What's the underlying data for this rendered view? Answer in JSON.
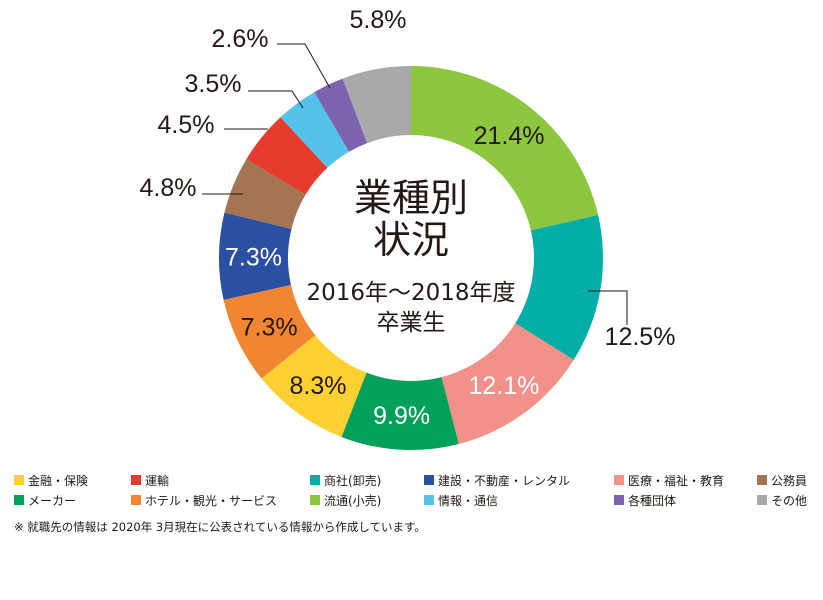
{
  "chart_data": {
    "type": "pie",
    "title": "業種別\n状況",
    "subtitle": "2016年〜2018年度\n卒業生",
    "categories": [
      "流通(小売)",
      "商社(卸売)",
      "医療・福祉・教育",
      "メーカー",
      "金融・保険",
      "ホテル・観光・サービス",
      "建設・不動産・レンタル",
      "公務員",
      "運輸",
      "情報・通信",
      "各種団体",
      "その他"
    ],
    "values": [
      21.4,
      12.5,
      12.1,
      9.9,
      8.3,
      7.3,
      7.3,
      4.8,
      4.5,
      3.5,
      2.6,
      5.8
    ],
    "labels": [
      "21.4%",
      "12.5%",
      "12.1%",
      "9.9%",
      "8.3%",
      "7.3%",
      "7.3%",
      "4.8%",
      "4.5%",
      "3.5%",
      "2.6%",
      "5.8%"
    ],
    "colors": [
      "#8dc63f",
      "#00aea5",
      "#f2918a",
      "#00a05a",
      "#fed032",
      "#f08532",
      "#2b4fa2",
      "#a47553",
      "#e63c2e",
      "#55c2ec",
      "#7b64ad",
      "#a8a9ab"
    ],
    "label_colors": [
      "#231815",
      "#231815",
      "#ffffff",
      "#ffffff",
      "#231815",
      "#231815",
      "#ffffff",
      "#231815",
      "#231815",
      "#231815",
      "#231815",
      "#231815"
    ],
    "chart_kind": "donut"
  },
  "legend": {
    "rows": [
      [
        {
          "label": "金融・保険",
          "color": "#fed032"
        },
        {
          "label": "運輸",
          "color": "#e63c2e"
        },
        {
          "label": "商社(卸売)",
          "color": "#00aea5"
        },
        {
          "label": "建設・不動産・レンタル",
          "color": "#2b4fa2"
        },
        {
          "label": "医療・福祉・教育",
          "color": "#f2918a"
        },
        {
          "label": "公務員",
          "color": "#a47553"
        }
      ],
      [
        {
          "label": "メーカー",
          "color": "#00a05a"
        },
        {
          "label": "ホテル・観光・サービス",
          "color": "#f08532"
        },
        {
          "label": "流通(小売)",
          "color": "#8dc63f"
        },
        {
          "label": "情報・通信",
          "color": "#55c2ec"
        },
        {
          "label": "各種団体",
          "color": "#7b64ad"
        },
        {
          "label": "その他",
          "color": "#a8a9ab"
        }
      ]
    ]
  },
  "note": "※ 就職先の情報は 2020年 3月現在に公表されている情報から作成しています。"
}
